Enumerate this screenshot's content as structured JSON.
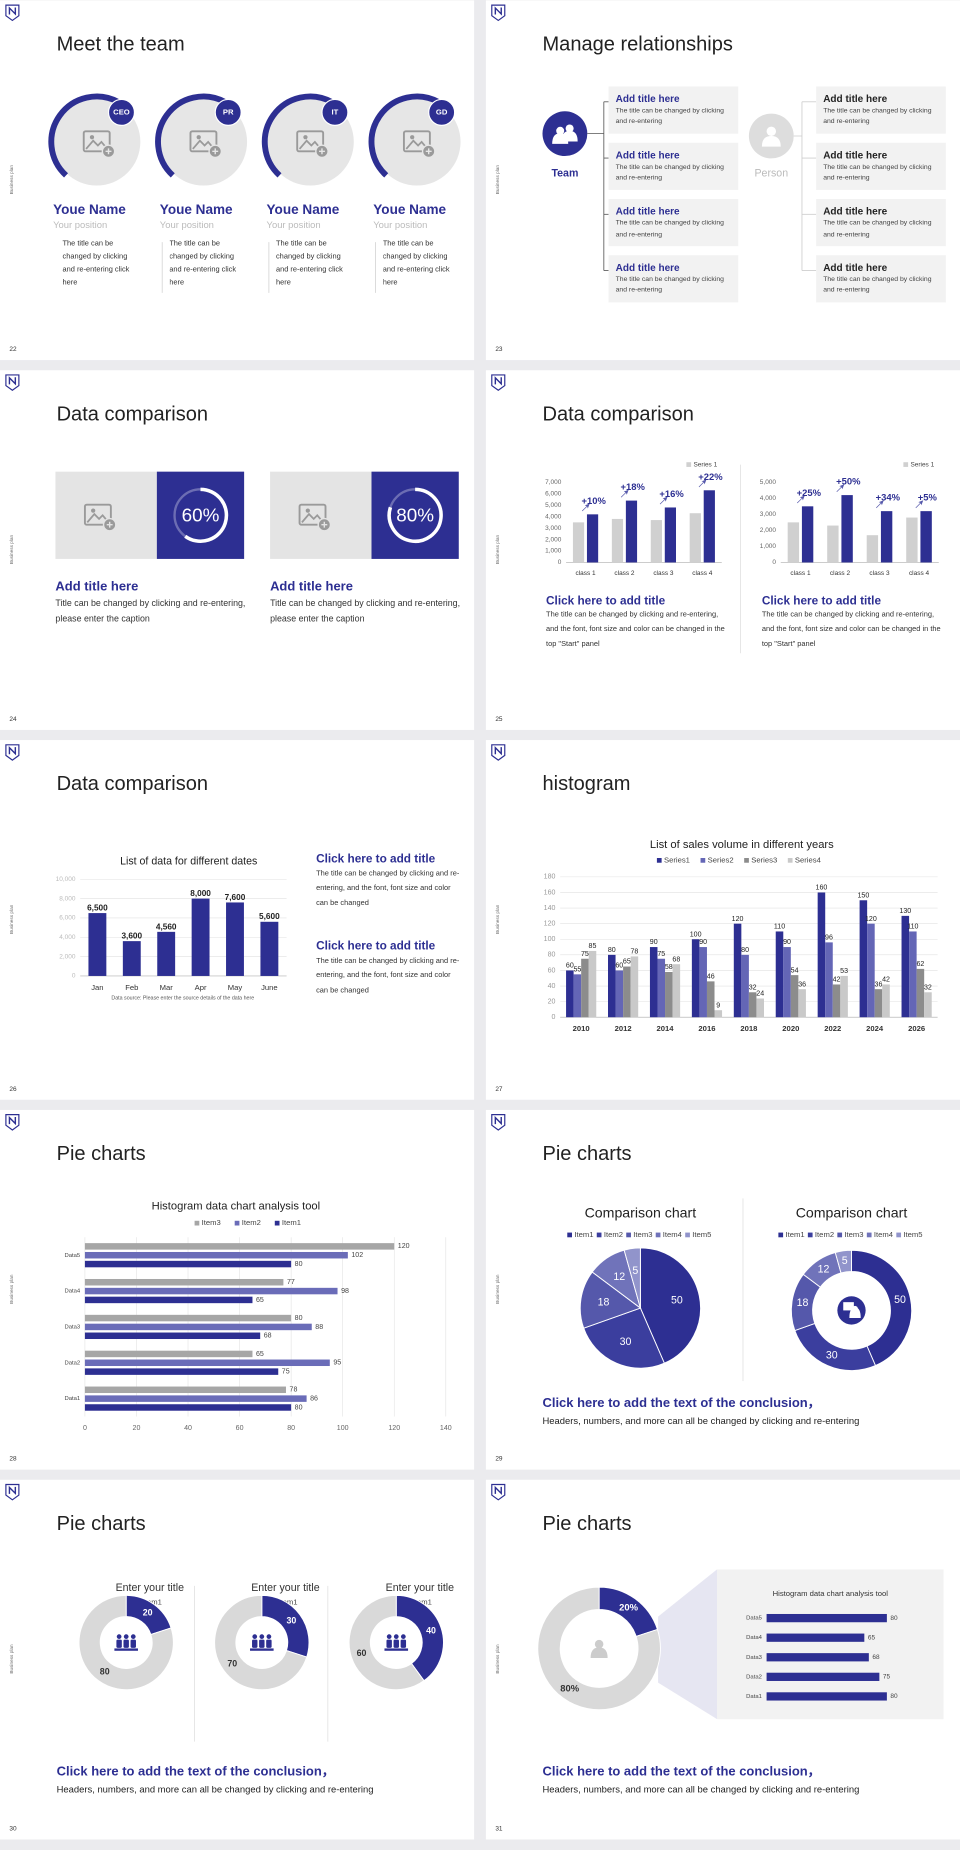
{
  "side_label": "Business plan",
  "slides": [
    {
      "number": 22,
      "title": "Meet the team",
      "members": [
        {
          "badge": "CEO",
          "name": "Youe Name",
          "position": "Your position",
          "text": "The title can be changed by clicking and re-entering click here"
        },
        {
          "badge": "PR",
          "name": "Youe Name",
          "position": "Your position",
          "text": "The title can be changed by clicking and re-entering click here"
        },
        {
          "badge": "IT",
          "name": "Youe Name",
          "position": "Your position",
          "text": "The title can be changed by clicking and re-entering click here"
        },
        {
          "badge": "GD",
          "name": "Youe Name",
          "position": "Your position",
          "text": "The title can be changed by clicking and re-entering click here"
        }
      ]
    },
    {
      "number": 23,
      "title": "Manage relationships",
      "left_label": "Team",
      "right_label": "Person",
      "left_items": [
        {
          "title": "Add title here",
          "text": "The title can be changed by clicking and re-entering"
        },
        {
          "title": "Add title here",
          "text": "The title can be changed by clicking and re-entering"
        },
        {
          "title": "Add title here",
          "text": "The title can be changed by clicking and re-entering"
        },
        {
          "title": "Add title here",
          "text": "The title can be changed by clicking and re-entering"
        }
      ],
      "right_items": [
        {
          "title": "Add title here",
          "text": "The title can be changed by clicking and re-entering"
        },
        {
          "title": "Add title here",
          "text": "The title can be changed by clicking and re-entering"
        },
        {
          "title": "Add title here",
          "text": "The title can be changed by clicking and re-entering"
        },
        {
          "title": "Add title here",
          "text": "The title can be changed by clicking and re-entering"
        }
      ]
    },
    {
      "number": 24,
      "title": "Data comparison",
      "cards": [
        {
          "value": 60,
          "value_label": "60%",
          "title": "Add title here",
          "text": "Title can be changed by clicking and re-entering, please enter the caption"
        },
        {
          "value": 80,
          "value_label": "80%",
          "title": "Add title here",
          "text": "Title can be changed by clicking and re-entering, please enter the caption"
        }
      ]
    },
    {
      "number": 25,
      "title": "Data comparison",
      "charts": [
        {
          "type": "bar",
          "categories": [
            "class 1",
            "class 2",
            "class 3",
            "class 4"
          ],
          "series": [
            {
              "name": "Series 1",
              "color": "#d0d0d0",
              "values": [
                3500,
                3800,
                3700,
                4300
              ]
            },
            {
              "color": "#2d2f92",
              "values": [
                4200,
                5400,
                4800,
                6300
              ]
            }
          ],
          "annotations": [
            "+10%",
            "+18%",
            "+16%",
            "+22%"
          ],
          "ylim": [
            0,
            7000
          ],
          "yticks": [
            0,
            {
              "value": 1000,
              "label": "1,000"
            },
            {
              "value": 2000,
              "label": "2,000"
            },
            {
              "value": 3000,
              "label": "3,000"
            },
            {
              "value": 4000,
              "label": "4,000"
            },
            {
              "value": 5000,
              "label": "5,000"
            },
            {
              "value": 6000,
              "label": "6,000"
            },
            {
              "value": 7000,
              "label": "7,000"
            }
          ],
          "grid": false
        },
        {
          "type": "bar",
          "categories": [
            "class 1",
            "class 2",
            "class 3",
            "class 4"
          ],
          "series": [
            {
              "name": "Series 1",
              "color": "#d0d0d0",
              "values": [
                2500,
                2300,
                1700,
                2800
              ]
            },
            {
              "color": "#2d2f92",
              "values": [
                3500,
                4200,
                3200,
                3200
              ]
            }
          ],
          "annotations": [
            "+25%",
            "+50%",
            "+34%",
            "+5%"
          ],
          "ylim": [
            0,
            5000
          ],
          "yticks": [
            0,
            {
              "value": 1000,
              "label": "1,000"
            },
            {
              "value": 2000,
              "label": "2,000"
            },
            {
              "value": 3000,
              "label": "3,000"
            },
            {
              "value": 4000,
              "label": "4,000"
            },
            {
              "value": 5000,
              "label": "5,000"
            }
          ],
          "grid": false
        }
      ],
      "blocks": [
        {
          "title": "Click here to add title",
          "text": "The title can be changed by clicking and re-entering, and the font, font size and color can be changed in the top \"Start\" panel"
        },
        {
          "title": "Click here to add title",
          "text": "The title can be changed by clicking and re-entering, and the font, font size and color can be changed in the top \"Start\" panel"
        }
      ]
    },
    {
      "number": 26,
      "title": "Data comparison",
      "chart": {
        "type": "bar",
        "title": "List of data for different dates",
        "categories": [
          "Jan",
          "Feb",
          "Mar",
          "Apr",
          "May",
          "June"
        ],
        "values": [
          6500,
          3600,
          4560,
          8000,
          7600,
          5600
        ],
        "value_labels": [
          "6,500",
          "3,600",
          "4,560",
          "8,000",
          "7,600",
          "5,600"
        ],
        "color": "#2d2f92",
        "ylim": [
          0,
          10000
        ],
        "yticks": [
          0,
          {
            "value": 2000,
            "label": "2,000"
          },
          {
            "value": 4000,
            "label": "4,000"
          },
          {
            "value": 6000,
            "label": "6,000"
          },
          {
            "value": 8000,
            "label": "8,000"
          },
          {
            "value": 10000,
            "label": "10,000"
          }
        ],
        "grid": true,
        "note": "Data source: Please enter the source details of the data here"
      },
      "blocks": [
        {
          "title": "Click here to add title",
          "text": "The title can be changed by clicking and re-entering, and the font, font size and color can be changed"
        },
        {
          "title": "Click here to add title",
          "text": "The title can be changed by clicking and re-entering, and the font, font size and color can be changed"
        }
      ]
    },
    {
      "number": 27,
      "title": "histogram",
      "chart": {
        "type": "bar",
        "title": "List of sales volume in different years",
        "categories": [
          "2010",
          "2012",
          "2014",
          "2016",
          "2018",
          "2020",
          "2022",
          "2024",
          "2026"
        ],
        "series": [
          {
            "name": "Series1",
            "color": "#2d2f92",
            "values": [
              60,
              80,
              90,
              100,
              120,
              110,
              160,
              150,
              130
            ]
          },
          {
            "name": "Series2",
            "color": "#6466b6",
            "values": [
              55,
              60,
              75,
              90,
              80,
              90,
              96,
              120,
              110
            ]
          },
          {
            "name": "Series3",
            "color": "#8c8c8c",
            "values": [
              75,
              65,
              58,
              46,
              32,
              54,
              42,
              36,
              62
            ]
          },
          {
            "name": "Series4",
            "color": "#c9c9c9",
            "values": [
              85,
              78,
              68,
              9,
              24,
              36,
              53,
              42,
              32
            ]
          }
        ],
        "ylim": [
          0,
          180
        ],
        "yticks": [
          0,
          20,
          40,
          60,
          80,
          100,
          120,
          140,
          160,
          180
        ],
        "grid": true
      }
    },
    {
      "number": 28,
      "title": "Pie charts",
      "chart": {
        "type": "bar",
        "orientation": "horizontal",
        "title": "Histogram data chart analysis tool",
        "categories": [
          "Data1",
          "Data2",
          "Data3",
          "Data4",
          "Data5"
        ],
        "series": [
          {
            "name": "Item3",
            "color": "#a6a6a6",
            "values": [
              78,
              65,
              80,
              77,
              120
            ]
          },
          {
            "name": "Item2",
            "color": "#6a6cb8",
            "values": [
              86,
              95,
              88,
              98,
              102
            ]
          },
          {
            "name": "Item1",
            "color": "#2d2f92",
            "values": [
              80,
              75,
              68,
              65,
              80
            ]
          }
        ],
        "xlim": [
          0,
          140
        ],
        "xticks": [
          0,
          20,
          40,
          60,
          80,
          100,
          120,
          140
        ],
        "grid": true
      }
    },
    {
      "number": 29,
      "title": "Pie charts",
      "charts": [
        {
          "type": "pie",
          "title": "Comparison chart",
          "categories": [
            "Item1",
            "Item2",
            "Item3",
            "Item4",
            "Item5"
          ],
          "values": [
            50,
            30,
            18,
            12,
            5
          ],
          "colors": [
            "#2d2f92",
            "#3b3e9e",
            "#5558ab",
            "#7073ba",
            "#9194cb"
          ]
        },
        {
          "type": "donut",
          "title": "Comparison chart",
          "categories": [
            "Item1",
            "Item2",
            "Item3",
            "Item4",
            "Item5"
          ],
          "values": [
            50,
            30,
            18,
            12,
            5
          ],
          "colors": [
            "#2d2f92",
            "#3b3e9e",
            "#5558ab",
            "#7073ba",
            "#9194cb"
          ]
        }
      ],
      "conclusion": {
        "title": "Click here to add the text of the conclusion，",
        "text": "Headers, numbers, and more can all be changed by clicking and re-entering"
      }
    },
    {
      "number": 30,
      "title": "Pie charts",
      "charts": [
        {
          "type": "donut",
          "title": "Enter your title",
          "categories": [
            "Item1",
            null
          ],
          "values": [
            20,
            80
          ],
          "colors": [
            "#2d2f92",
            "#d9d9d9"
          ]
        },
        {
          "type": "donut",
          "title": "Enter your title",
          "categories": [
            "Item1",
            null
          ],
          "values": [
            30,
            70
          ],
          "colors": [
            "#2d2f92",
            "#d9d9d9"
          ]
        },
        {
          "type": "donut",
          "title": "Enter your title",
          "categories": [
            "Item1",
            null
          ],
          "values": [
            40,
            60
          ],
          "colors": [
            "#2d2f92",
            "#d9d9d9"
          ]
        }
      ],
      "conclusion": {
        "title": "Click here to add the text of the conclusion，",
        "text": "Headers, numbers, and more can all be changed by clicking and re-entering"
      }
    },
    {
      "number": 31,
      "title": "Pie charts",
      "charts": [
        {
          "type": "donut",
          "values": [
            20,
            80
          ],
          "value_labels": [
            "20%",
            "80%"
          ],
          "colors": [
            "#2d2f92",
            "#d9d9d9"
          ]
        },
        {
          "type": "bar",
          "orientation": "horizontal",
          "title": "Histogram data chart analysis tool",
          "categories": [
            "Data5",
            "Data4",
            "Data3",
            "Data2",
            "Data1"
          ],
          "values": [
            80,
            65,
            68,
            75,
            80
          ],
          "color": "#2d2f92"
        }
      ],
      "conclusion": {
        "title": "Click here to add the text of the conclusion，",
        "text": "Headers, numbers, and more can all be changed by clicking and re-entering"
      }
    }
  ]
}
